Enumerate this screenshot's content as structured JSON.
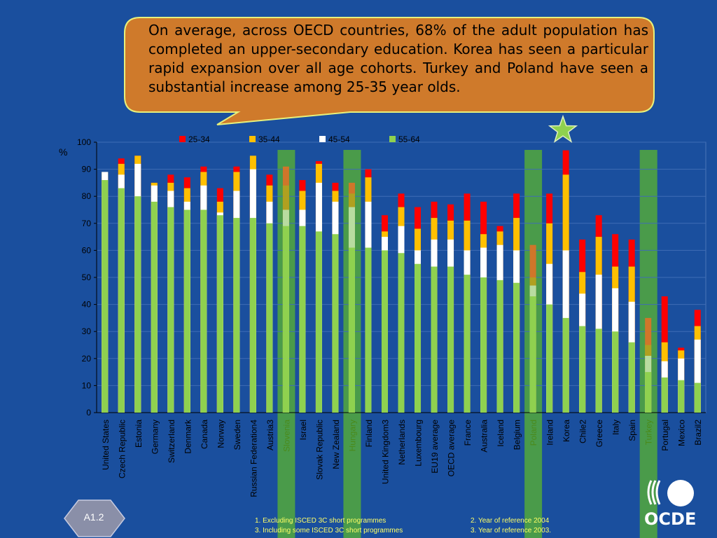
{
  "callout": {
    "text": "On average, across OECD countries, 68%  of the adult population has completed an upper-secondary education. Korea has seen a particular rapid expansion over all age cohorts. Turkey and Poland have seen a substantial increase among 25-35 year olds."
  },
  "badge": {
    "label": "A1.2"
  },
  "logo": {
    "text": "OCDE"
  },
  "footnotes": [
    "1. Excluding ISCED 3C short programmes",
    "2.  Year of reference 2004",
    "3. Including some ISCED 3C  short programmes",
    "3.  Year of reference 2003."
  ],
  "colors": {
    "background": "#1a4f9e",
    "callout_fill": "#cf7a2b",
    "callout_border": "#e8f07a",
    "s55_64": "#8fd14f",
    "s45_54": "#ffffff",
    "s35_44": "#ffc000",
    "s25_34": "#ff0000",
    "highlight_band": "#4a9b4a"
  },
  "chart_data": {
    "type": "bar",
    "stacked": "overlay",
    "ylabel": "%",
    "ylim": [
      0,
      100
    ],
    "yticks": [
      0,
      10,
      20,
      30,
      40,
      50,
      60,
      70,
      80,
      90,
      100
    ],
    "grid": true,
    "legend_position": "top",
    "categories": [
      "United States",
      "Czech Republic",
      "Estonia",
      "Germany",
      "Switzerland",
      "Denmark",
      "Canada",
      "Norway",
      "Sweden",
      "Russian Federation4",
      "Austria3",
      "Slovenia",
      "Israel",
      "Slovak Republic",
      "New Zealand",
      "Hungary",
      "Finland",
      "United Kingdom3",
      "Netherlands",
      "Luxembourg",
      "EU19  average",
      "OECD average",
      "France",
      "Australia",
      "Iceland",
      "Belgium",
      "Poland",
      "Ireland",
      "Korea",
      "Chile2",
      "Greece",
      "Italy",
      "Spain",
      "Turkey",
      "Portugal",
      "Mexico",
      "Brazil2"
    ],
    "highlighted": [
      "Slovenia",
      "Hungary",
      "Poland",
      "Turkey"
    ],
    "series": [
      {
        "name": "25-34",
        "color": "#ff0000",
        "values": [
          87,
          94,
          95,
          85,
          88,
          87,
          91,
          83,
          91,
          91,
          88,
          91,
          86,
          93,
          85,
          85,
          90,
          73,
          81,
          76,
          78,
          77,
          81,
          78,
          69,
          81,
          62,
          81,
          97,
          64,
          73,
          66,
          64,
          35,
          43,
          24,
          38
        ]
      },
      {
        "name": "35-44",
        "color": "#ffc000",
        "values": [
          89,
          92,
          95,
          85,
          85,
          83,
          89,
          78,
          89,
          95,
          84,
          84,
          82,
          92,
          82,
          81,
          87,
          67,
          76,
          68,
          72,
          71,
          71,
          66,
          67,
          72,
          50,
          70,
          88,
          52,
          65,
          54,
          54,
          25,
          26,
          23,
          32
        ]
      },
      {
        "name": "45-54",
        "color": "#ffffff",
        "values": [
          89,
          88,
          92,
          84,
          82,
          78,
          84,
          74,
          82,
          90,
          78,
          75,
          75,
          85,
          78,
          76,
          78,
          65,
          69,
          60,
          64,
          64,
          60,
          61,
          62,
          60,
          47,
          55,
          60,
          44,
          51,
          46,
          41,
          21,
          19,
          20,
          27
        ]
      },
      {
        "name": "55-64",
        "color": "#8fd14f",
        "values": [
          86,
          83,
          80,
          78,
          76,
          75,
          75,
          73,
          72,
          72,
          70,
          69,
          69,
          67,
          66,
          61,
          61,
          60,
          59,
          55,
          54,
          54,
          51,
          50,
          49,
          48,
          43,
          40,
          35,
          32,
          31,
          30,
          26,
          15,
          13,
          12,
          11
        ]
      }
    ]
  }
}
